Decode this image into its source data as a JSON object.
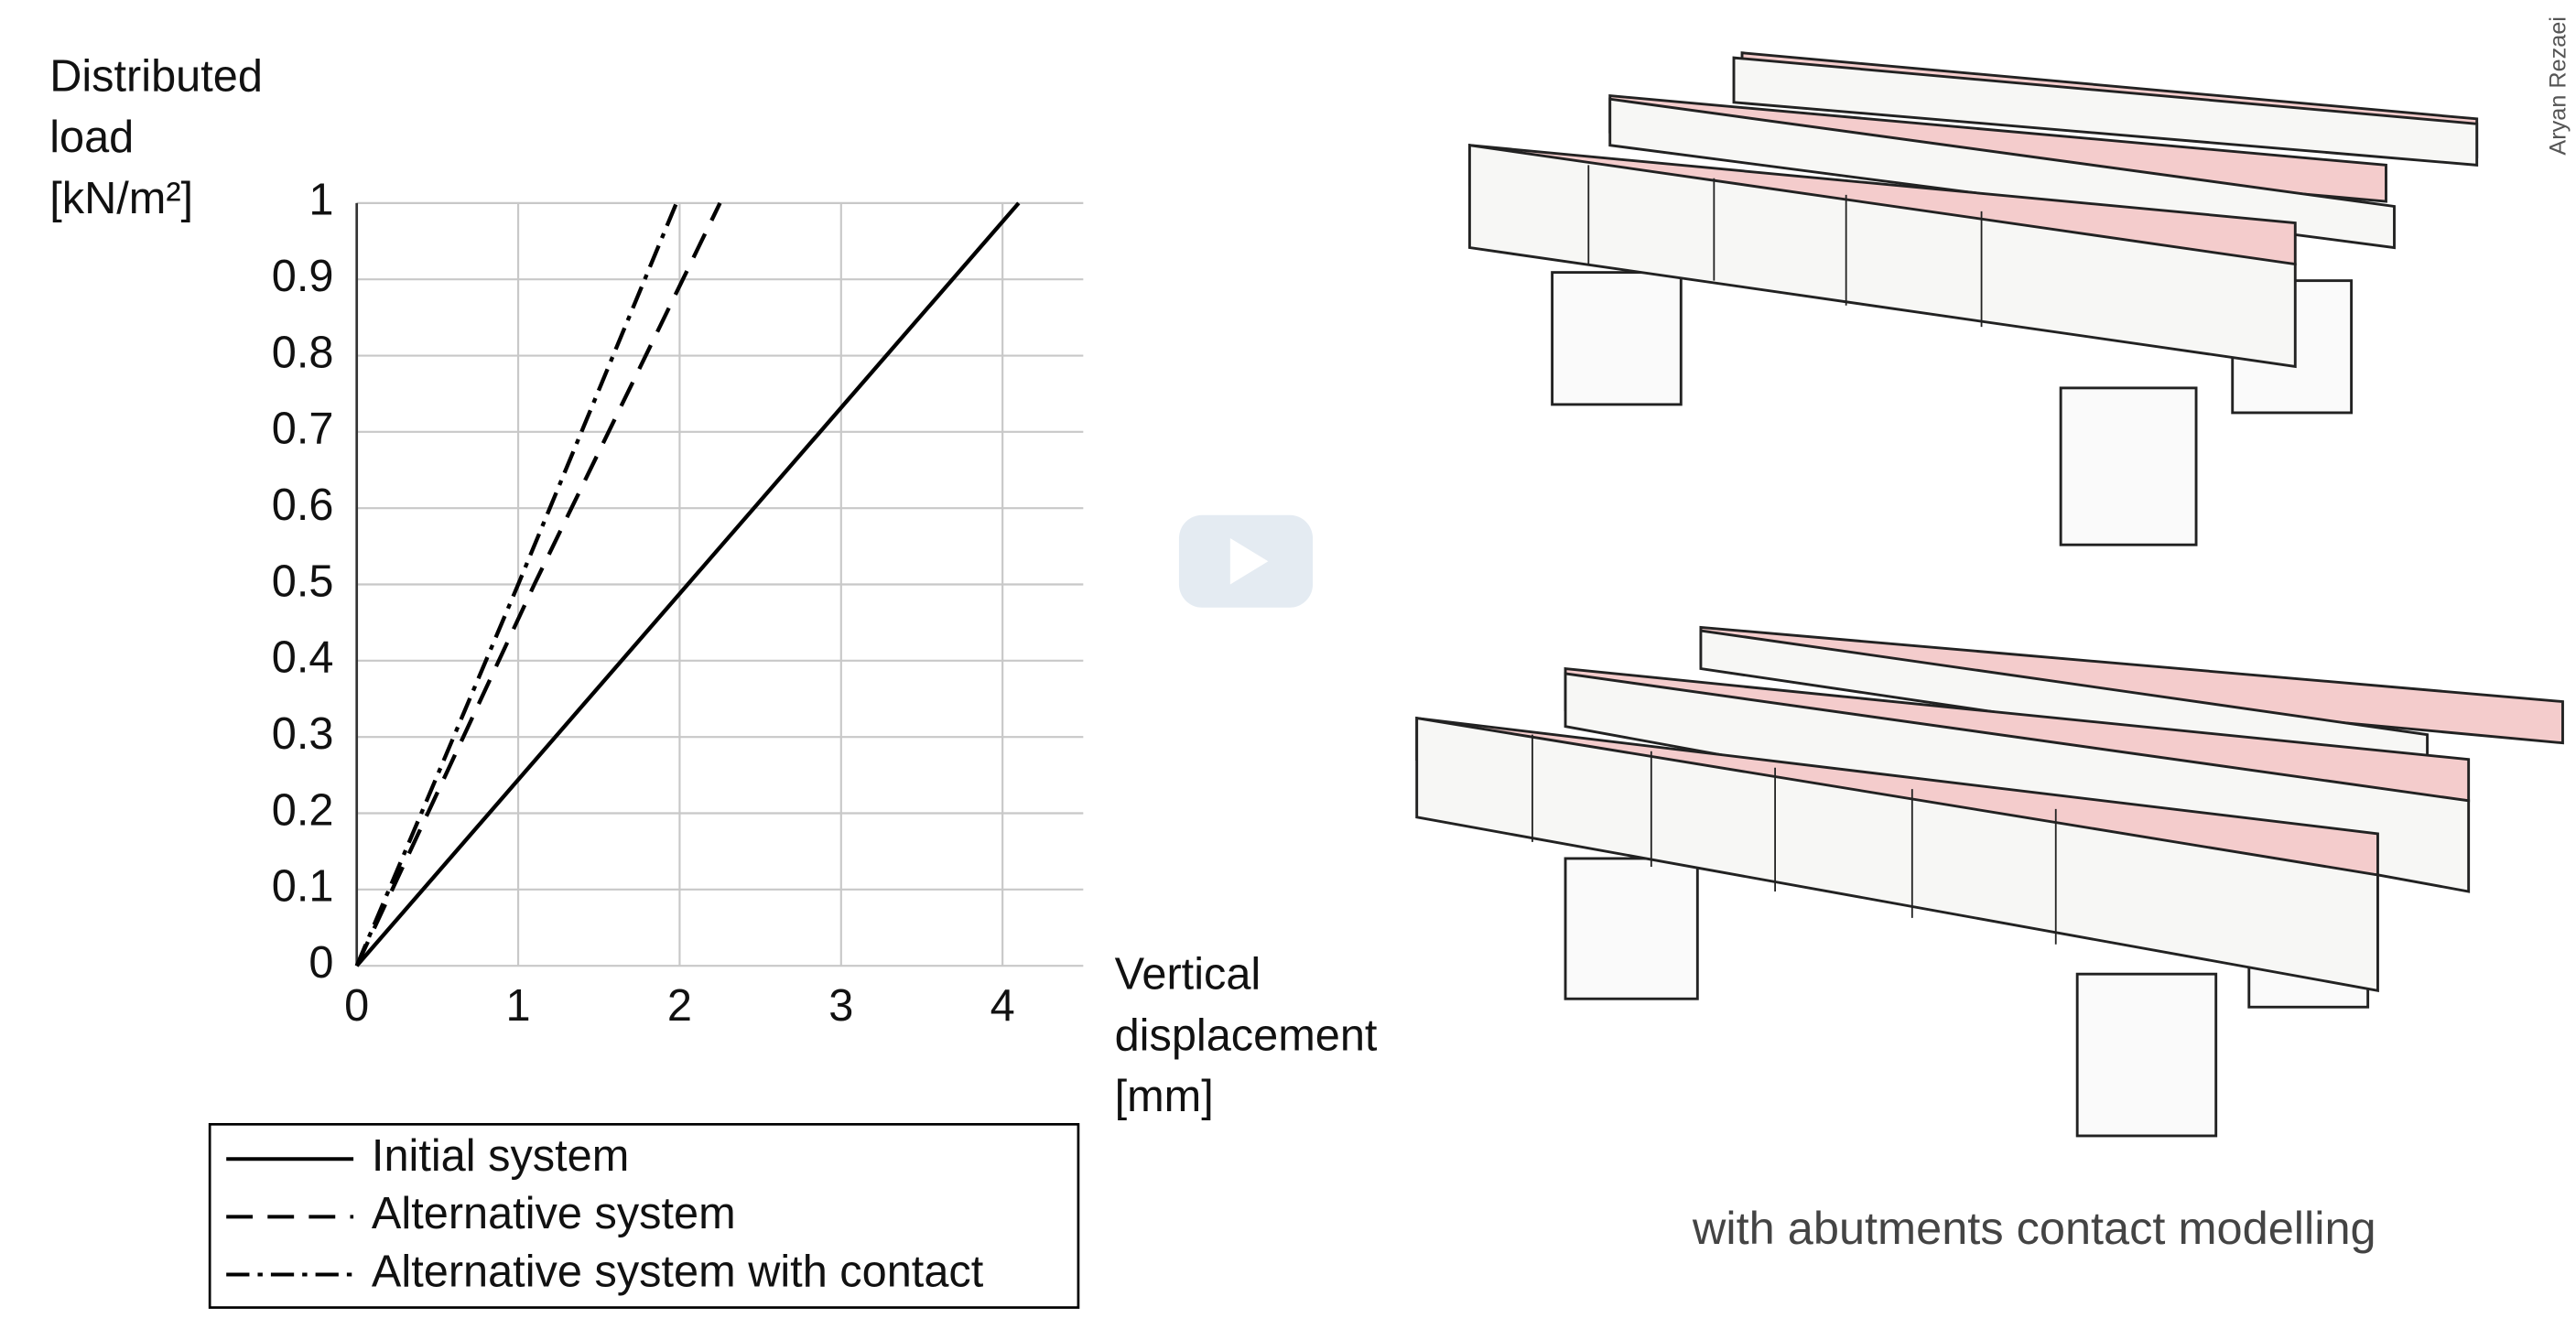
{
  "chart_data": {
    "type": "line",
    "ylabel": [
      "Distributed",
      "load",
      "[kN/m²]"
    ],
    "xlabel": [
      "Vertical",
      "displacement",
      "[mm]"
    ],
    "xlim": [
      0,
      4.5
    ],
    "xticks": [
      0,
      1,
      2,
      3,
      4
    ],
    "ylim": [
      0,
      1
    ],
    "yticks": [
      0,
      0.1,
      0.2,
      0.3,
      0.4,
      0.5,
      0.6,
      0.7,
      0.8,
      0.9,
      1
    ],
    "grid": true,
    "series": [
      {
        "name": "Initial system",
        "color": "#000000",
        "dash": "solid",
        "x": [
          0,
          4.1
        ],
        "values": [
          0,
          1
        ]
      },
      {
        "name": "Alternative system",
        "color": "#000000",
        "dash": "dashed",
        "x": [
          0,
          1.1,
          2.25
        ],
        "values": [
          0,
          0.5,
          1
        ]
      },
      {
        "name": "Alternative system with contact",
        "color": "#000000",
        "dash": "dashdot",
        "x": [
          0,
          1,
          1.98
        ],
        "values": [
          0,
          0.5,
          1
        ]
      }
    ]
  },
  "caption": "with abutments contact modelling",
  "credit": "Aryan Rezaei"
}
